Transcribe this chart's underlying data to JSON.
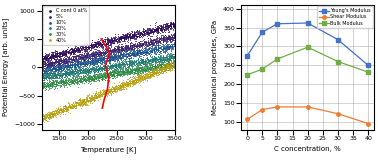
{
  "left_chart": {
    "xlabel": "Temperature [K]",
    "ylabel": "Potential Energy [arb. units]",
    "xlim": [
      1200,
      3500
    ],
    "ylim": [
      -1100,
      1100
    ],
    "xticks": [
      1500,
      2000,
      2500,
      3000,
      3500
    ],
    "yticks": [
      -1000,
      -500,
      0,
      500,
      1000
    ],
    "series": [
      {
        "label": "C cont 0 at%",
        "color": "#2d0a5e",
        "y_at_1200": 150,
        "y_at_3500": 750
      },
      {
        "label": "5%",
        "color": "#3a2070",
        "y_at_1200": 30,
        "y_at_3500": 530
      },
      {
        "label": "10%",
        "color": "#1a5090",
        "y_at_1200": -70,
        "y_at_3500": 380
      },
      {
        "label": "20%",
        "color": "#1a7a70",
        "y_at_1200": -180,
        "y_at_3500": 190
      },
      {
        "label": "30%",
        "color": "#2a8a40",
        "y_at_1200": -330,
        "y_at_3500": 60
      },
      {
        "label": "40%",
        "color": "#b8a010",
        "y_at_1200": -900,
        "y_at_3500": 50
      }
    ],
    "noise_std": 35,
    "n_points": 1800,
    "red_line_x": [
      2230,
      2380,
      2300,
      2360,
      2340,
      2280,
      2250
    ],
    "red_line_y": [
      500,
      260,
      30,
      -180,
      -380,
      -580,
      -720
    ]
  },
  "right_chart": {
    "xlabel": "C concentration, %",
    "ylabel": "Mechanical properties, GPa",
    "xlim": [
      -2,
      42
    ],
    "ylim": [
      80,
      410
    ],
    "yticks": [
      100,
      150,
      200,
      250,
      300,
      350,
      400
    ],
    "xticks": [
      0,
      5,
      10,
      15,
      20,
      25,
      30,
      35,
      40
    ],
    "x_data": [
      0,
      5,
      10,
      20,
      30,
      40
    ],
    "youngs": [
      275,
      338,
      360,
      362,
      318,
      250
    ],
    "shear": [
      107,
      133,
      140,
      140,
      122,
      96
    ],
    "bulk": [
      225,
      240,
      267,
      298,
      260,
      232
    ],
    "youngs_color": "#4472c4",
    "shear_color": "#ed7d31",
    "bulk_color": "#70ad47",
    "youngs_label": "Young's Modulus",
    "shear_label": "Shear Modulus",
    "bulk_label": "Bulk Modulus"
  }
}
